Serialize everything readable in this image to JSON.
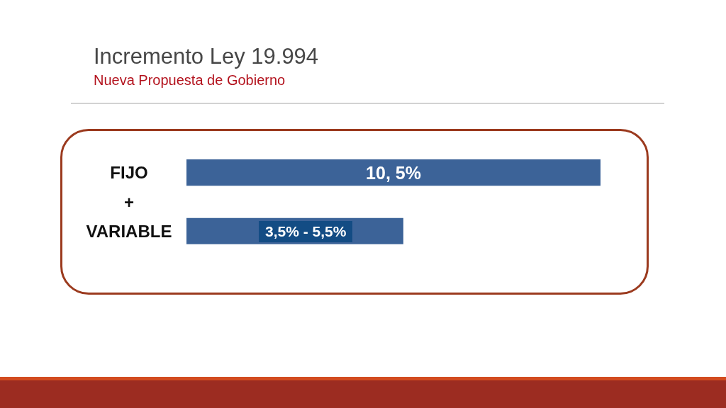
{
  "chart_data": {
    "type": "bar",
    "orientation": "horizontal",
    "title": "Incremento Ley 19.994",
    "subtitle": "Nueva Propuesta de Gobierno",
    "categories": [
      "FIJO",
      "+",
      "VARIABLE"
    ],
    "values": [
      10.5,
      null,
      5.5
    ],
    "xlim": [
      0,
      10.5
    ],
    "color": "#3c6398",
    "value_labels": [
      "10, 5%",
      null,
      null
    ],
    "annotations": [
      "3,5% - 5,5%"
    ]
  }
}
